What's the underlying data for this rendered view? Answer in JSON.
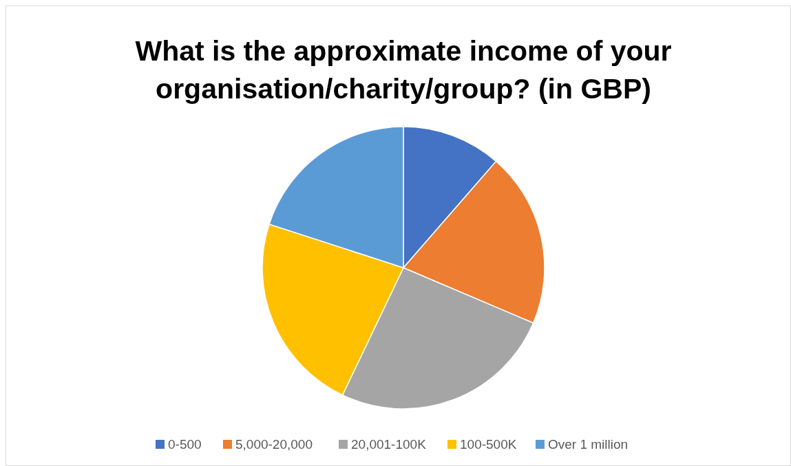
{
  "chart_data": {
    "type": "pie",
    "title": "What is the approximate income of your organisation/charity/group? (in GBP)",
    "categories": [
      "0-500",
      "5,000-20,000",
      "20,001-100K",
      "100-500K",
      "Over 1 million"
    ],
    "values": [
      11.4,
      20.0,
      25.7,
      22.9,
      20.0
    ],
    "colors": [
      "#4472c4",
      "#ed7d31",
      "#a5a5a5",
      "#ffc000",
      "#5b9bd5"
    ],
    "legend": "bottom"
  }
}
